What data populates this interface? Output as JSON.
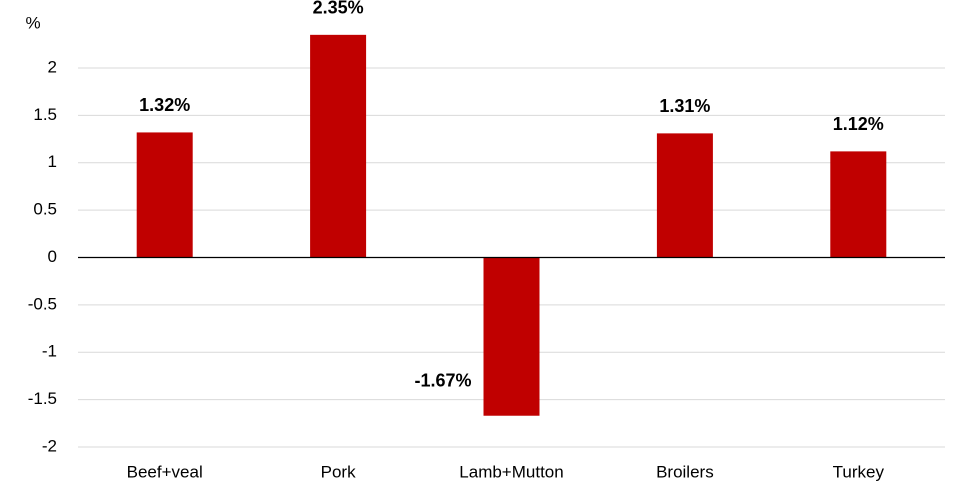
{
  "chart_data": {
    "type": "bar",
    "y_label": "%",
    "categories": [
      "Beef+veal",
      "Pork",
      "Lamb+Mutton",
      "Broilers",
      "Turkey"
    ],
    "values": [
      1.32,
      2.35,
      -1.67,
      1.31,
      1.12
    ],
    "value_labels": [
      "1.32%",
      "2.35%",
      "-1.67%",
      "1.31%",
      "1.12%"
    ],
    "color": "#c00000",
    "ylim": [
      -2,
      2
    ],
    "yticks": [
      -2,
      -1.5,
      -1,
      -0.5,
      0,
      0.5,
      1,
      1.5,
      2
    ],
    "grid": true
  }
}
